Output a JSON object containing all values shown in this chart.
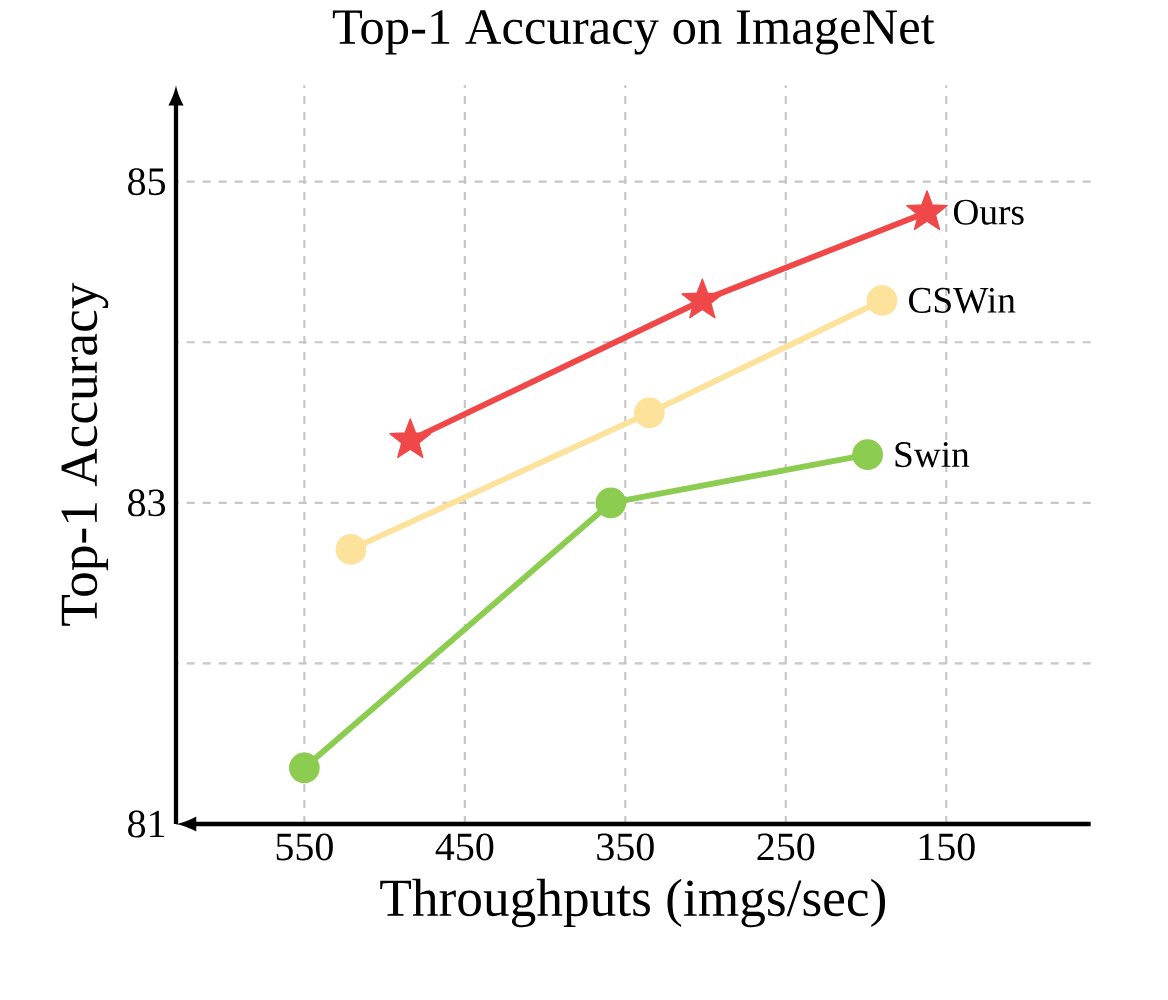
{
  "chart_data": {
    "type": "line",
    "title": "Top-1 Accuracy on ImageNet",
    "xlabel": "Throughputs (imgs/sec)",
    "ylabel": "Top-1 Accuracy",
    "xlim": [
      630,
      60
    ],
    "ylim": [
      81,
      85.6
    ],
    "xticks": [
      550,
      450,
      350,
      250,
      150
    ],
    "yticks": [
      81,
      {
        "value": 82,
        "label": null
      },
      83,
      {
        "value": 84,
        "label": null
      },
      85
    ],
    "grid": true,
    "legend": false,
    "series": [
      {
        "name": "Ours",
        "color": "#f04848",
        "marker": "star",
        "x": [
          484,
          302,
          162
        ],
        "values": [
          83.39,
          84.26,
          84.81
        ]
      },
      {
        "name": "CSWin",
        "color": "#fce29a",
        "marker": "circle",
        "x": [
          521,
          335,
          190
        ],
        "values": [
          82.71,
          83.56,
          84.26
        ]
      },
      {
        "name": "Swin",
        "color": "#8ccc50",
        "marker": "circle",
        "x": [
          550,
          359,
          199
        ],
        "values": [
          81.35,
          83.0,
          83.3
        ]
      }
    ]
  }
}
